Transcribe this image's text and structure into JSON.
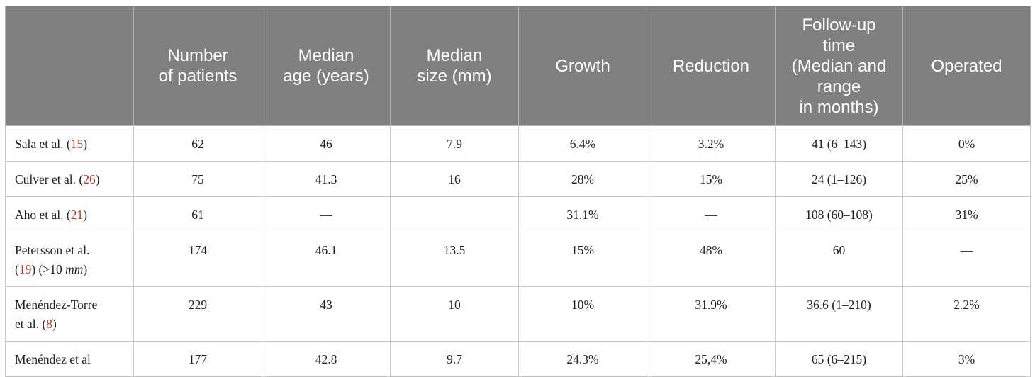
{
  "table": {
    "headers": [
      "",
      "Number\nof patients",
      "Median\nage (years)",
      "Median\nsize (mm)",
      "Growth",
      "Reduction",
      "Follow-up\ntime\n(Median and\nrange\nin months)",
      "Operated"
    ],
    "rows": [
      {
        "study": {
          "pre": "Sala et al. (",
          "ref": "15",
          "post": ")"
        },
        "cells": [
          "62",
          "46",
          "7.9",
          "6.4%",
          "3.2%",
          "41 (6–143)",
          "0%"
        ]
      },
      {
        "study": {
          "pre": "Culver et al. (",
          "ref": "26",
          "post": ")"
        },
        "cells": [
          "75",
          "41.3",
          "16",
          "28%",
          "15%",
          "24 (1–126)",
          "25%"
        ]
      },
      {
        "study": {
          "pre": "Aho et al. (",
          "ref": "21",
          "post": ")"
        },
        "cells": [
          "61",
          "—",
          "",
          "31.1%",
          "—",
          "108 (60–108)",
          "31%"
        ]
      },
      {
        "study": {
          "pre": "Petersson et al.",
          "pre2": "(",
          "ref": "19",
          "post": ") (>10 ",
          "unit": "mm",
          "post2": ")"
        },
        "cells": [
          "174",
          "46.1",
          "13.5",
          "15%",
          "48%",
          "60",
          "—"
        ]
      },
      {
        "study": {
          "pre": "Menéndez-Torre",
          "pre2": "et al. (",
          "ref": "8",
          "post": ")"
        },
        "cells": [
          "229",
          "43",
          "10",
          "10%",
          "31.9%",
          "36.6 (1–210)",
          "2.2%"
        ]
      },
      {
        "study": {
          "pre": "Menéndez et al"
        },
        "cells": [
          "177",
          "42.8",
          "9.7",
          "24.3%",
          "25,4%",
          "65 (6–215)",
          "3%"
        ]
      }
    ]
  }
}
